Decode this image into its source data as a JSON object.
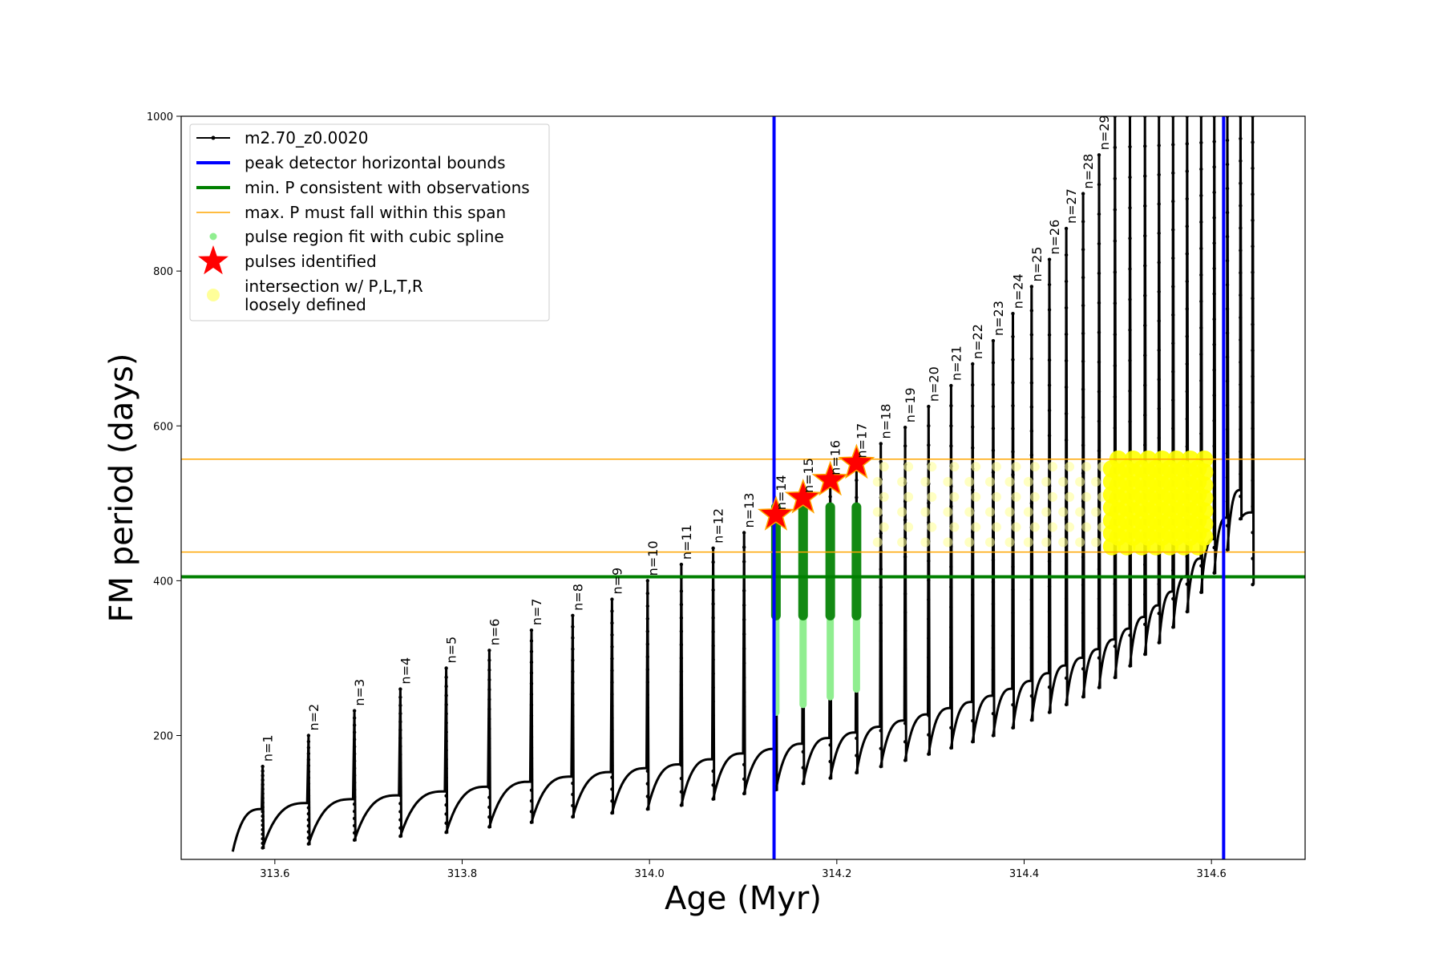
{
  "chart_data": {
    "type": "line",
    "xlabel": "Age (Myr)",
    "ylabel": "FM period (days)",
    "xlim": [
      313.5,
      314.7
    ],
    "ylim": [
      40,
      1000
    ],
    "xticks": [
      313.6,
      313.8,
      314.0,
      314.2,
      314.4,
      314.6
    ],
    "xtick_labels": [
      "313.6",
      "313.8",
      "314.0",
      "314.2",
      "314.4",
      "314.6"
    ],
    "yticks": [
      200,
      400,
      600,
      800,
      1000
    ],
    "ytick_labels": [
      "200",
      "400",
      "600",
      "800",
      "1000"
    ],
    "grid": false,
    "legend_position": "top-left",
    "legend": [
      {
        "label": "m2.70_z0.0020",
        "kind": "line-marker",
        "color": "#000000"
      },
      {
        "label": "peak detector horizontal bounds",
        "kind": "line",
        "color": "#0000ff"
      },
      {
        "label": "min. P consistent with observations",
        "kind": "line",
        "color": "#008000"
      },
      {
        "label": "max. P must fall within this span",
        "kind": "line",
        "color": "#ffa500"
      },
      {
        "label": "pulse region fit with cubic spline",
        "kind": "dot",
        "color": "#90ee90"
      },
      {
        "label": "pulses identified",
        "kind": "star",
        "color": "#ff0000"
      },
      {
        "label": "intersection w/ P,L,T,R",
        "label2": "loosely defined",
        "kind": "dot",
        "color": "#ffff99"
      }
    ],
    "peak_detector_bounds": [
      314.133,
      314.613
    ],
    "min_period": 405,
    "max_period_span": [
      437,
      557
    ],
    "series_name": "m2.70_z0.0020",
    "pulses": [
      {
        "label": "n=1",
        "x": 313.587,
        "peak": 160,
        "min": 55
      },
      {
        "label": "n=2",
        "x": 313.636,
        "peak": 200,
        "min": 60
      },
      {
        "label": "n=3",
        "x": 313.685,
        "peak": 232,
        "min": 65
      },
      {
        "label": "n=4",
        "x": 313.734,
        "peak": 260,
        "min": 70
      },
      {
        "label": "n=5",
        "x": 313.783,
        "peak": 287,
        "min": 75
      },
      {
        "label": "n=6",
        "x": 313.829,
        "peak": 310,
        "min": 82
      },
      {
        "label": "n=7",
        "x": 313.874,
        "peak": 336,
        "min": 88
      },
      {
        "label": "n=8",
        "x": 313.918,
        "peak": 355,
        "min": 95
      },
      {
        "label": "n=9",
        "x": 313.96,
        "peak": 376,
        "min": 100
      },
      {
        "label": "n=10",
        "x": 313.998,
        "peak": 400,
        "min": 105
      },
      {
        "label": "n=11",
        "x": 314.034,
        "peak": 421,
        "min": 110
      },
      {
        "label": "n=12",
        "x": 314.068,
        "peak": 442,
        "min": 118
      },
      {
        "label": "n=13",
        "x": 314.101,
        "peak": 462,
        "min": 125
      },
      {
        "label": "n=14",
        "x": 314.135,
        "peak": 485,
        "min": 130
      },
      {
        "label": "n=15",
        "x": 314.164,
        "peak": 507,
        "min": 138
      },
      {
        "label": "n=16",
        "x": 314.193,
        "peak": 530,
        "min": 145
      },
      {
        "label": "n=17",
        "x": 314.221,
        "peak": 552,
        "min": 152
      },
      {
        "label": "n=18",
        "x": 314.247,
        "peak": 577,
        "min": 160
      },
      {
        "label": "n=19",
        "x": 314.273,
        "peak": 598,
        "min": 168
      },
      {
        "label": "n=20",
        "x": 314.298,
        "peak": 625,
        "min": 176
      },
      {
        "label": "n=21",
        "x": 314.322,
        "peak": 652,
        "min": 184
      },
      {
        "label": "n=22",
        "x": 314.345,
        "peak": 680,
        "min": 192
      },
      {
        "label": "n=23",
        "x": 314.367,
        "peak": 710,
        "min": 200
      },
      {
        "label": "n=24",
        "x": 314.388,
        "peak": 745,
        "min": 210
      },
      {
        "label": "n=25",
        "x": 314.408,
        "peak": 780,
        "min": 220
      },
      {
        "label": "n=26",
        "x": 314.427,
        "peak": 815,
        "min": 230
      },
      {
        "label": "n=27",
        "x": 314.445,
        "peak": 855,
        "min": 240
      },
      {
        "label": "n=28",
        "x": 314.463,
        "peak": 900,
        "min": 250
      },
      {
        "label": "n=29",
        "x": 314.48,
        "peak": 950,
        "min": 262
      },
      {
        "label": "",
        "x": 314.497,
        "peak": 1000,
        "min": 275
      },
      {
        "label": "",
        "x": 314.513,
        "peak": 1000,
        "min": 290
      },
      {
        "label": "",
        "x": 314.529,
        "peak": 1000,
        "min": 305
      },
      {
        "label": "",
        "x": 314.544,
        "peak": 1000,
        "min": 320
      },
      {
        "label": "",
        "x": 314.559,
        "peak": 1000,
        "min": 340
      },
      {
        "label": "",
        "x": 314.574,
        "peak": 1000,
        "min": 360
      },
      {
        "label": "",
        "x": 314.589,
        "peak": 1000,
        "min": 385
      },
      {
        "label": "",
        "x": 314.603,
        "peak": 1000,
        "min": 410
      },
      {
        "label": "",
        "x": 314.617,
        "peak": 1000,
        "min": 440
      },
      {
        "label": "",
        "x": 314.631,
        "peak": 1000,
        "min": 480
      },
      {
        "label": "",
        "x": 314.644,
        "peak": 1000,
        "min": 395
      }
    ],
    "identified_pulses": [
      {
        "x": 314.135,
        "y": 485
      },
      {
        "x": 314.164,
        "y": 507
      },
      {
        "x": 314.193,
        "y": 530
      },
      {
        "x": 314.221,
        "y": 552
      }
    ],
    "spline_regions": [
      {
        "x": 314.135,
        "green_range": [
          355,
          495
        ],
        "light_range": [
          230,
          355
        ]
      },
      {
        "x": 314.164,
        "green_range": [
          355,
          495
        ],
        "light_range": [
          240,
          355
        ]
      },
      {
        "x": 314.193,
        "green_range": [
          355,
          495
        ],
        "light_range": [
          250,
          355
        ]
      },
      {
        "x": 314.221,
        "green_range": [
          355,
          495
        ],
        "light_range": [
          260,
          355
        ]
      }
    ],
    "intersection_region": {
      "x_range": [
        314.24,
        314.6
      ],
      "y_range": [
        440,
        557
      ]
    }
  }
}
